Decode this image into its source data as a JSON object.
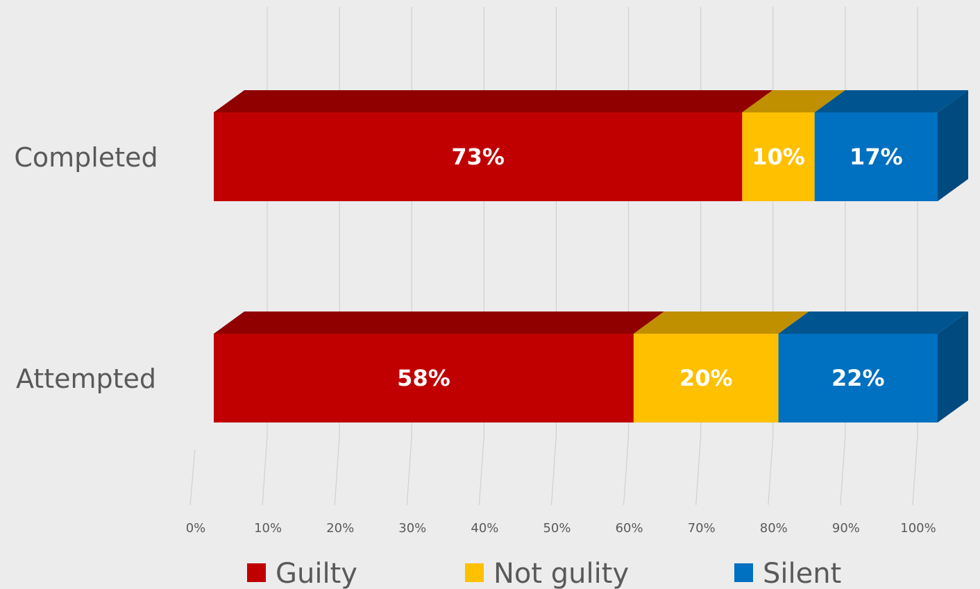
{
  "chart_data": {
    "type": "bar",
    "orientation": "horizontal",
    "stacked": "100%",
    "three_d": true,
    "categories": [
      "Completed",
      "Attempted"
    ],
    "series": [
      {
        "name": "Guilty",
        "values": [
          73,
          58
        ],
        "color": "#c00000",
        "top_color": "#900000",
        "labels": [
          "73%",
          "58%"
        ]
      },
      {
        "name": "Not gulity",
        "values": [
          10,
          20
        ],
        "color": "#ffc000",
        "top_color": "#c09000",
        "labels": [
          "10%",
          "20%"
        ]
      },
      {
        "name": "Silent",
        "values": [
          17,
          22
        ],
        "color": "#0070c0",
        "top_color": "#005590",
        "labels": [
          "17%",
          "22%"
        ]
      }
    ],
    "xlim": [
      0,
      100
    ],
    "x_ticks": [
      "0%",
      "10%",
      "20%",
      "30%",
      "40%",
      "50%",
      "60%",
      "70%",
      "80%",
      "90%",
      "100%"
    ],
    "grid": true,
    "legend": "bottom"
  }
}
